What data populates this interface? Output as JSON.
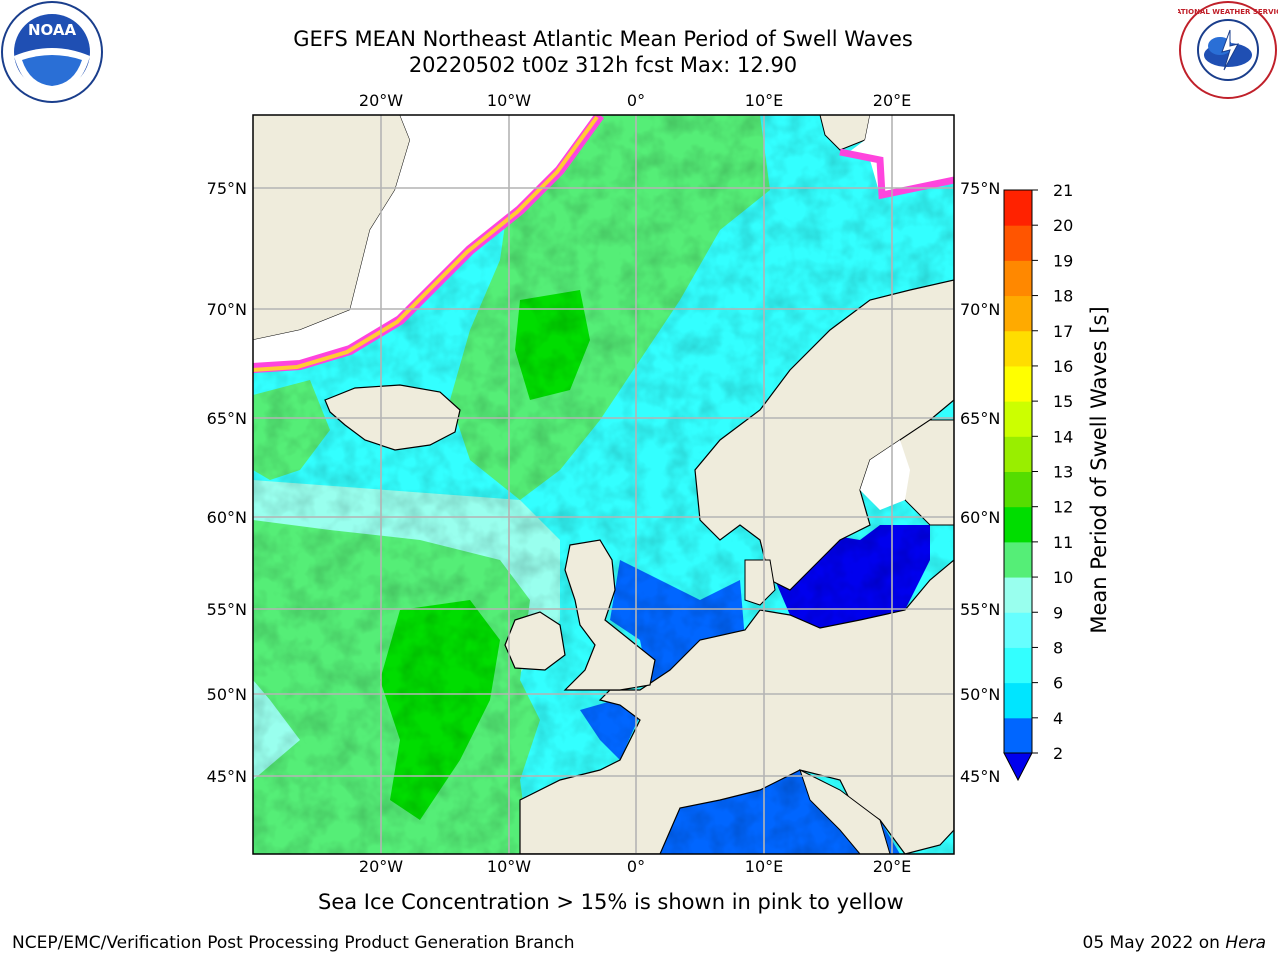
{
  "title": {
    "line1": "GEFS MEAN Northeast Atlantic Mean Period of Swell Waves",
    "line2": "20220502 t00z 312h fcst   Max: 12.90"
  },
  "map": {
    "lon_ticks": [
      "20°W",
      "10°W",
      "0°",
      "10°E",
      "20°E"
    ],
    "lat_ticks": [
      "75°N",
      "70°N",
      "65°N",
      "60°N",
      "55°N",
      "50°N",
      "45°N"
    ]
  },
  "colorbar": {
    "label": "Mean Period of Swell Waves [s]",
    "ticks": [
      "2",
      "4",
      "6",
      "8",
      "9",
      "10",
      "11",
      "12",
      "13",
      "14",
      "15",
      "16",
      "17",
      "18",
      "19",
      "20",
      "21"
    ],
    "colors": [
      "#0066ff",
      "#00e5ff",
      "#33ffff",
      "#66ffff",
      "#99ffee",
      "#55ee77",
      "#00dd00",
      "#55dd00",
      "#99ee00",
      "#ccff00",
      "#ffff00",
      "#ffdd00",
      "#ffaa00",
      "#ff8800",
      "#ff5500",
      "#ff2200"
    ],
    "extend_color": "#0000ee"
  },
  "note": "Sea Ice Concentration > 15% is shown in pink to yellow",
  "footer": {
    "left": "NCEP/EMC/Verification Post Processing Product Generation Branch",
    "right_date": "05 May 2022 on",
    "right_machine": "Hera"
  },
  "logos": {
    "left": "NOAA",
    "right": "NATIONAL WEATHER SERVICE"
  }
}
